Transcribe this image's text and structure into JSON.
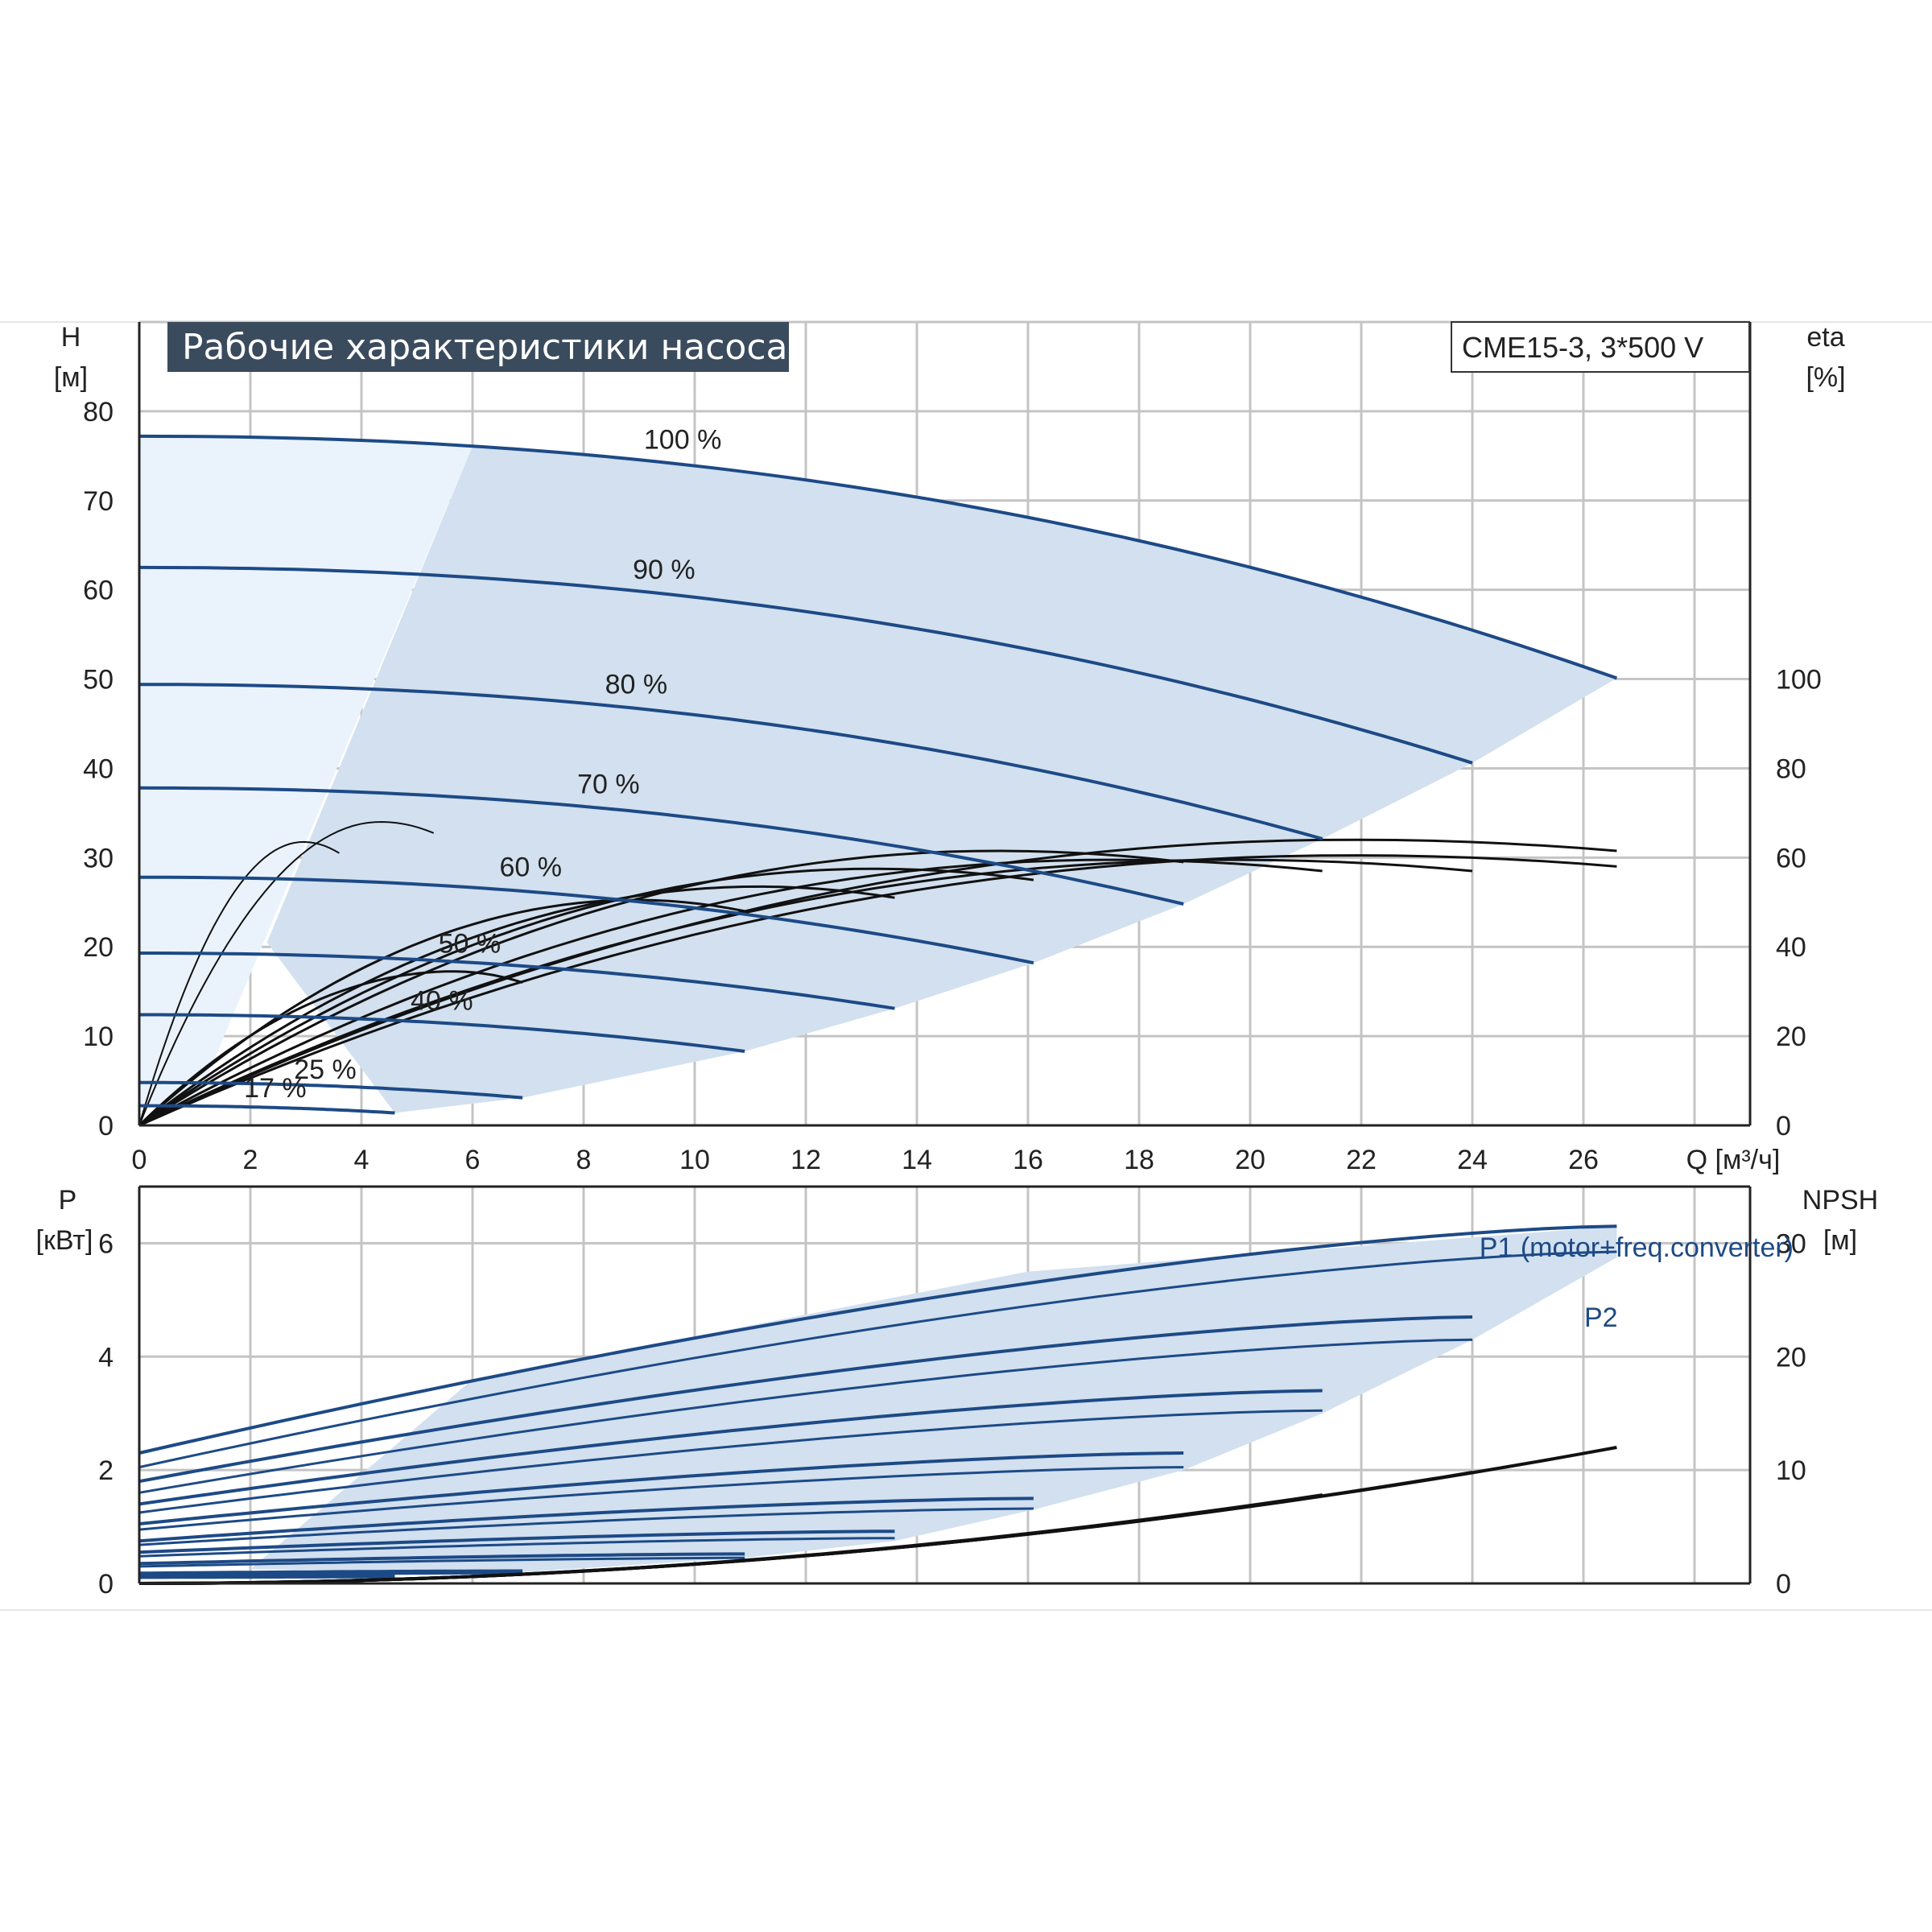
{
  "title": "Рабочие характеристики насоса",
  "model": "CME15-3, 3*500 V",
  "colors": {
    "curve": "#1d4a86",
    "band": "#d2e0ef",
    "light_band": "#eaf3fc",
    "grid": "#c4c4c4",
    "eff": "#111111",
    "title_bg": "#3b4b5e"
  },
  "chart_data": [
    {
      "type": "line",
      "name": "head",
      "xlabel": "Q [м³/ч]",
      "ylabel": [
        "H",
        "[м]"
      ],
      "y2label": [
        "eta",
        "[%]"
      ],
      "xlim": [
        0,
        29
      ],
      "ylim": [
        0,
        90
      ],
      "y2lim": [
        0,
        180
      ],
      "xticks": [
        "0",
        "2",
        "4",
        "6",
        "8",
        "10",
        "12",
        "14",
        "16",
        "18",
        "20",
        "22",
        "24",
        "26"
      ],
      "yticks": [
        "0",
        "10",
        "20",
        "30",
        "40",
        "50",
        "60",
        "70",
        "80"
      ],
      "y2ticks": [
        "0",
        "20",
        "40",
        "60",
        "80",
        "100"
      ],
      "grid": true,
      "speed_curves": [
        {
          "label": "100 %",
          "H0": 77.2,
          "Qmax": 26.6,
          "Hend": 50.1
        },
        {
          "label": "90 %",
          "H0": 62.5,
          "Qmax": 24.0,
          "Hend": 40.6
        },
        {
          "label": "80 %",
          "H0": 49.4,
          "Qmax": 21.3,
          "Hend": 32.1
        },
        {
          "label": "70 %",
          "H0": 37.8,
          "Qmax": 18.8,
          "Hend": 24.8
        },
        {
          "label": "60 %",
          "H0": 27.8,
          "Qmax": 16.1,
          "Hend": 18.2
        },
        {
          "label": "50 %",
          "H0": 19.3,
          "Qmax": 13.6,
          "Hend": 13.1
        },
        {
          "label": "40 %",
          "H0": 12.4,
          "Qmax": 10.9,
          "Hend": 8.3
        },
        {
          "label": "25 %",
          "H0": 4.8,
          "Qmax": 6.9,
          "Hend": 3.1
        },
        {
          "label": "17 %",
          "H0": 2.2,
          "Qmax": 4.6,
          "Hend": 1.4
        }
      ],
      "eta_curves": [
        {
          "Qend": 26.6,
          "eta_end": 61.5
        },
        {
          "Qend": 26.6,
          "eta_end": 58.0
        },
        {
          "Qend": 24.0,
          "eta_end": 57.0
        },
        {
          "Qend": 21.3,
          "eta_end": 57.0
        },
        {
          "Qend": 18.8,
          "eta_end": 59.0
        },
        {
          "Qend": 16.1,
          "eta_end": 55.0
        },
        {
          "Qend": 13.6,
          "eta_end": 51.0
        },
        {
          "Qend": 10.9,
          "eta_end": 48.0
        },
        {
          "Qend": 6.9,
          "eta_end": 32.0
        },
        {
          "Qend": 5.3,
          "eta_end": 65.5
        },
        {
          "Qend": 3.6,
          "eta_end": 61.0
        }
      ]
    },
    {
      "type": "line",
      "name": "power",
      "ylabel": [
        "P",
        "[кВт]"
      ],
      "y2label": [
        "NPSH",
        "[м]"
      ],
      "xlim": [
        0,
        29
      ],
      "ylim": [
        0,
        7
      ],
      "y2lim": [
        0,
        35
      ],
      "xticks": [],
      "yticks": [
        "0",
        "2",
        "4",
        "6"
      ],
      "y2ticks": [
        "0",
        "10",
        "20",
        "30"
      ],
      "grid": true,
      "series": [
        {
          "name": "P1 (motor+freq.converter)",
          "x": [
            0,
            26.6
          ],
          "values": [
            2.3,
            6.3
          ]
        },
        {
          "name": "P2",
          "x": [
            0,
            26.6
          ],
          "values": [
            2.05,
            5.85
          ]
        }
      ],
      "power_pairs": [
        {
          "Qmax": 24.0,
          "p1": [
            1.8,
            4.7
          ],
          "p2": [
            1.6,
            4.3
          ]
        },
        {
          "Qmax": 21.3,
          "p1": [
            1.4,
            3.4
          ],
          "p2": [
            1.25,
            3.05
          ]
        },
        {
          "Qmax": 18.8,
          "p1": [
            1.05,
            2.3
          ],
          "p2": [
            0.95,
            2.05
          ]
        },
        {
          "Qmax": 16.1,
          "p1": [
            0.75,
            1.5
          ],
          "p2": [
            0.68,
            1.32
          ]
        },
        {
          "Qmax": 13.6,
          "p1": [
            0.55,
            0.92
          ],
          "p2": [
            0.48,
            0.8
          ]
        },
        {
          "Qmax": 10.9,
          "p1": [
            0.35,
            0.52
          ],
          "p2": [
            0.3,
            0.45
          ]
        },
        {
          "Qmax": 6.9,
          "p1": [
            0.18,
            0.22
          ],
          "p2": [
            0.15,
            0.18
          ]
        },
        {
          "Qmax": 4.6,
          "p1": [
            0.12,
            0.13
          ],
          "p2": [
            0.1,
            0.11
          ]
        }
      ],
      "npsh": [
        {
          "Qend": 26.6,
          "npsh_end": 12.0
        },
        {
          "Qend": 24.0,
          "npsh_end": 9.8
        },
        {
          "Qend": 21.3,
          "npsh_end": 7.8
        },
        {
          "Qend": 18.8,
          "npsh_end": 6.0
        }
      ]
    }
  ]
}
